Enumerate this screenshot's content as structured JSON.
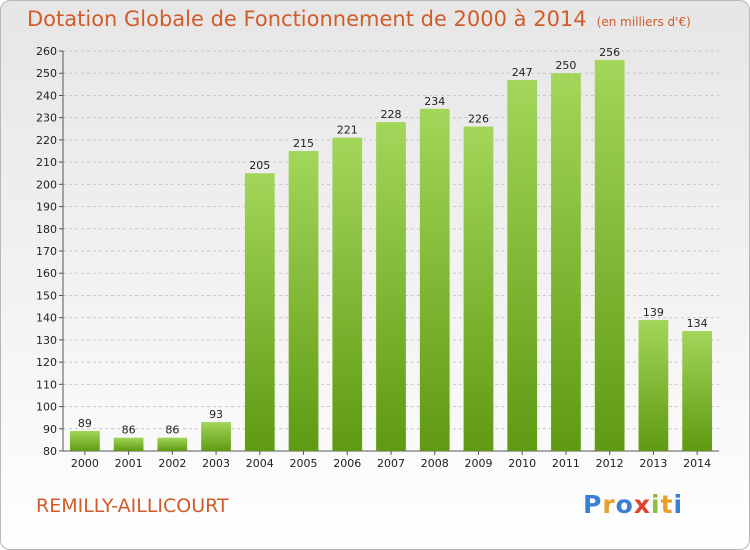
{
  "header": {
    "title": "Dotation Globale de Fonctionnement de 2000 à 2014",
    "unit_note": "(en milliers d'€)"
  },
  "footer": {
    "commune": "REMILLY-AILLICOURT",
    "logo_letters": [
      "P",
      "r",
      "o",
      "x",
      "i",
      "t",
      "i"
    ]
  },
  "colors": {
    "bar_top": "#a3d65a",
    "bar_bottom": "#5f9a12",
    "title": "#d05c2a",
    "logo": [
      "#3a7fd5",
      "#e7a12b",
      "#3a7fd5",
      "#e0432d",
      "#8ac03a",
      "#e7a12b",
      "#3a7fd5"
    ]
  },
  "chart_data": {
    "type": "bar",
    "title": "Dotation Globale de Fonctionnement de 2000 à 2014",
    "xlabel": "",
    "ylabel": "",
    "categories": [
      "2000",
      "2001",
      "2002",
      "2003",
      "2004",
      "2005",
      "2006",
      "2007",
      "2008",
      "2009",
      "2010",
      "2011",
      "2012",
      "2013",
      "2014"
    ],
    "values": [
      89,
      86,
      86,
      93,
      205,
      215,
      221,
      228,
      234,
      226,
      247,
      250,
      256,
      139,
      134
    ],
    "ylim": [
      80,
      260
    ],
    "ytick_step": 10,
    "grid": true,
    "legend": "none"
  }
}
